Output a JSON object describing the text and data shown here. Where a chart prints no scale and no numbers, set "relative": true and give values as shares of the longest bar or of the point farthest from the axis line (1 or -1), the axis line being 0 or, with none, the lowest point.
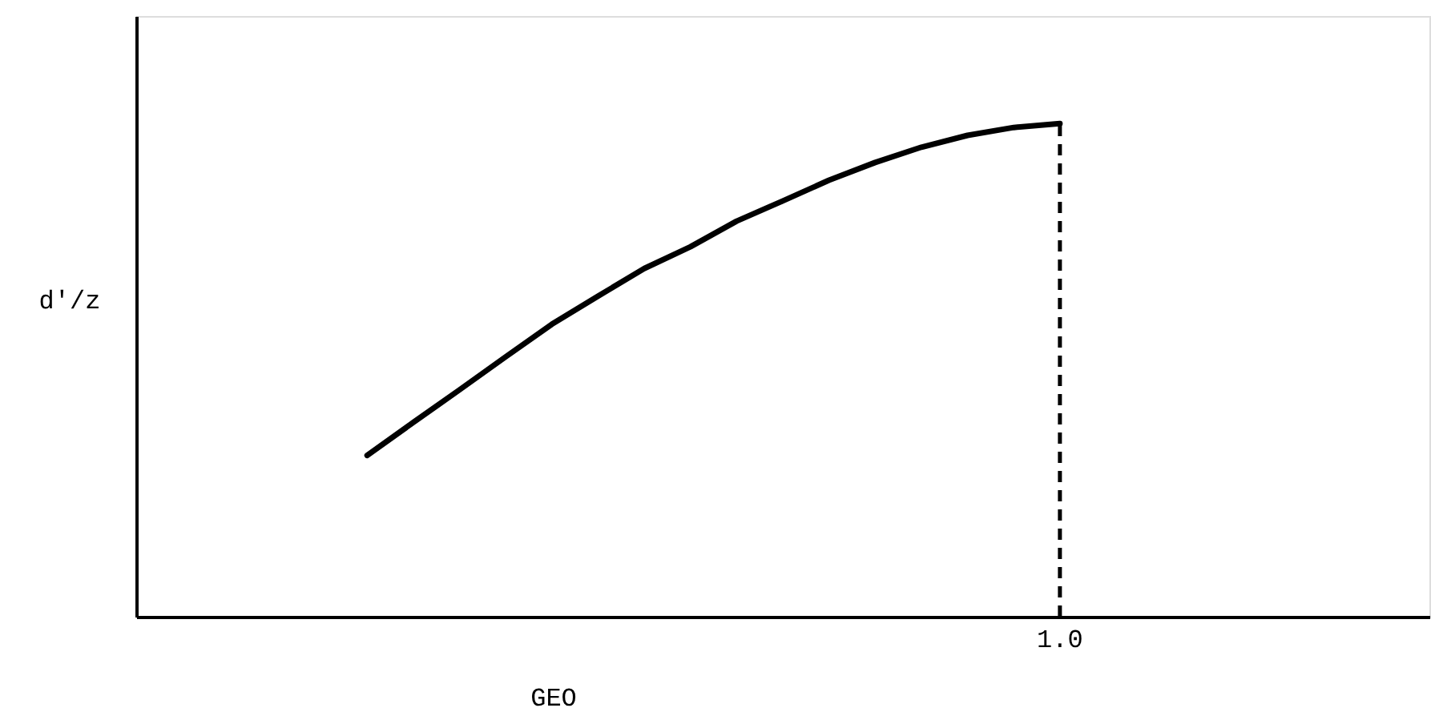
{
  "chart_data": {
    "type": "line",
    "xlabel": "GEO",
    "ylabel": "d'/z",
    "relative": true,
    "marker": "none",
    "line_style": "solid",
    "categories": [
      null,
      null,
      null,
      null,
      null,
      null,
      null,
      null,
      null,
      null,
      null,
      null,
      null,
      null,
      null,
      null,
      null,
      null,
      null,
      null,
      null,
      null,
      null,
      null,
      null,
      null,
      null,
      null,
      null
    ],
    "series": [
      {
        "color": "#000000",
        "values": [
          null,
          null,
          null,
          null,
          null,
          0.327,
          0.394,
          0.46,
          0.527,
          0.593,
          0.65,
          0.706,
          0.75,
          0.802,
          0.843,
          0.885,
          0.921,
          0.952,
          0.976,
          0.992,
          1.0,
          null,
          null,
          null,
          null,
          null,
          null,
          null,
          null
        ]
      }
    ],
    "ref_lines": [
      {
        "axis": "x",
        "label": "1.0",
        "line_style": "dashed",
        "color": "#000000"
      }
    ]
  }
}
